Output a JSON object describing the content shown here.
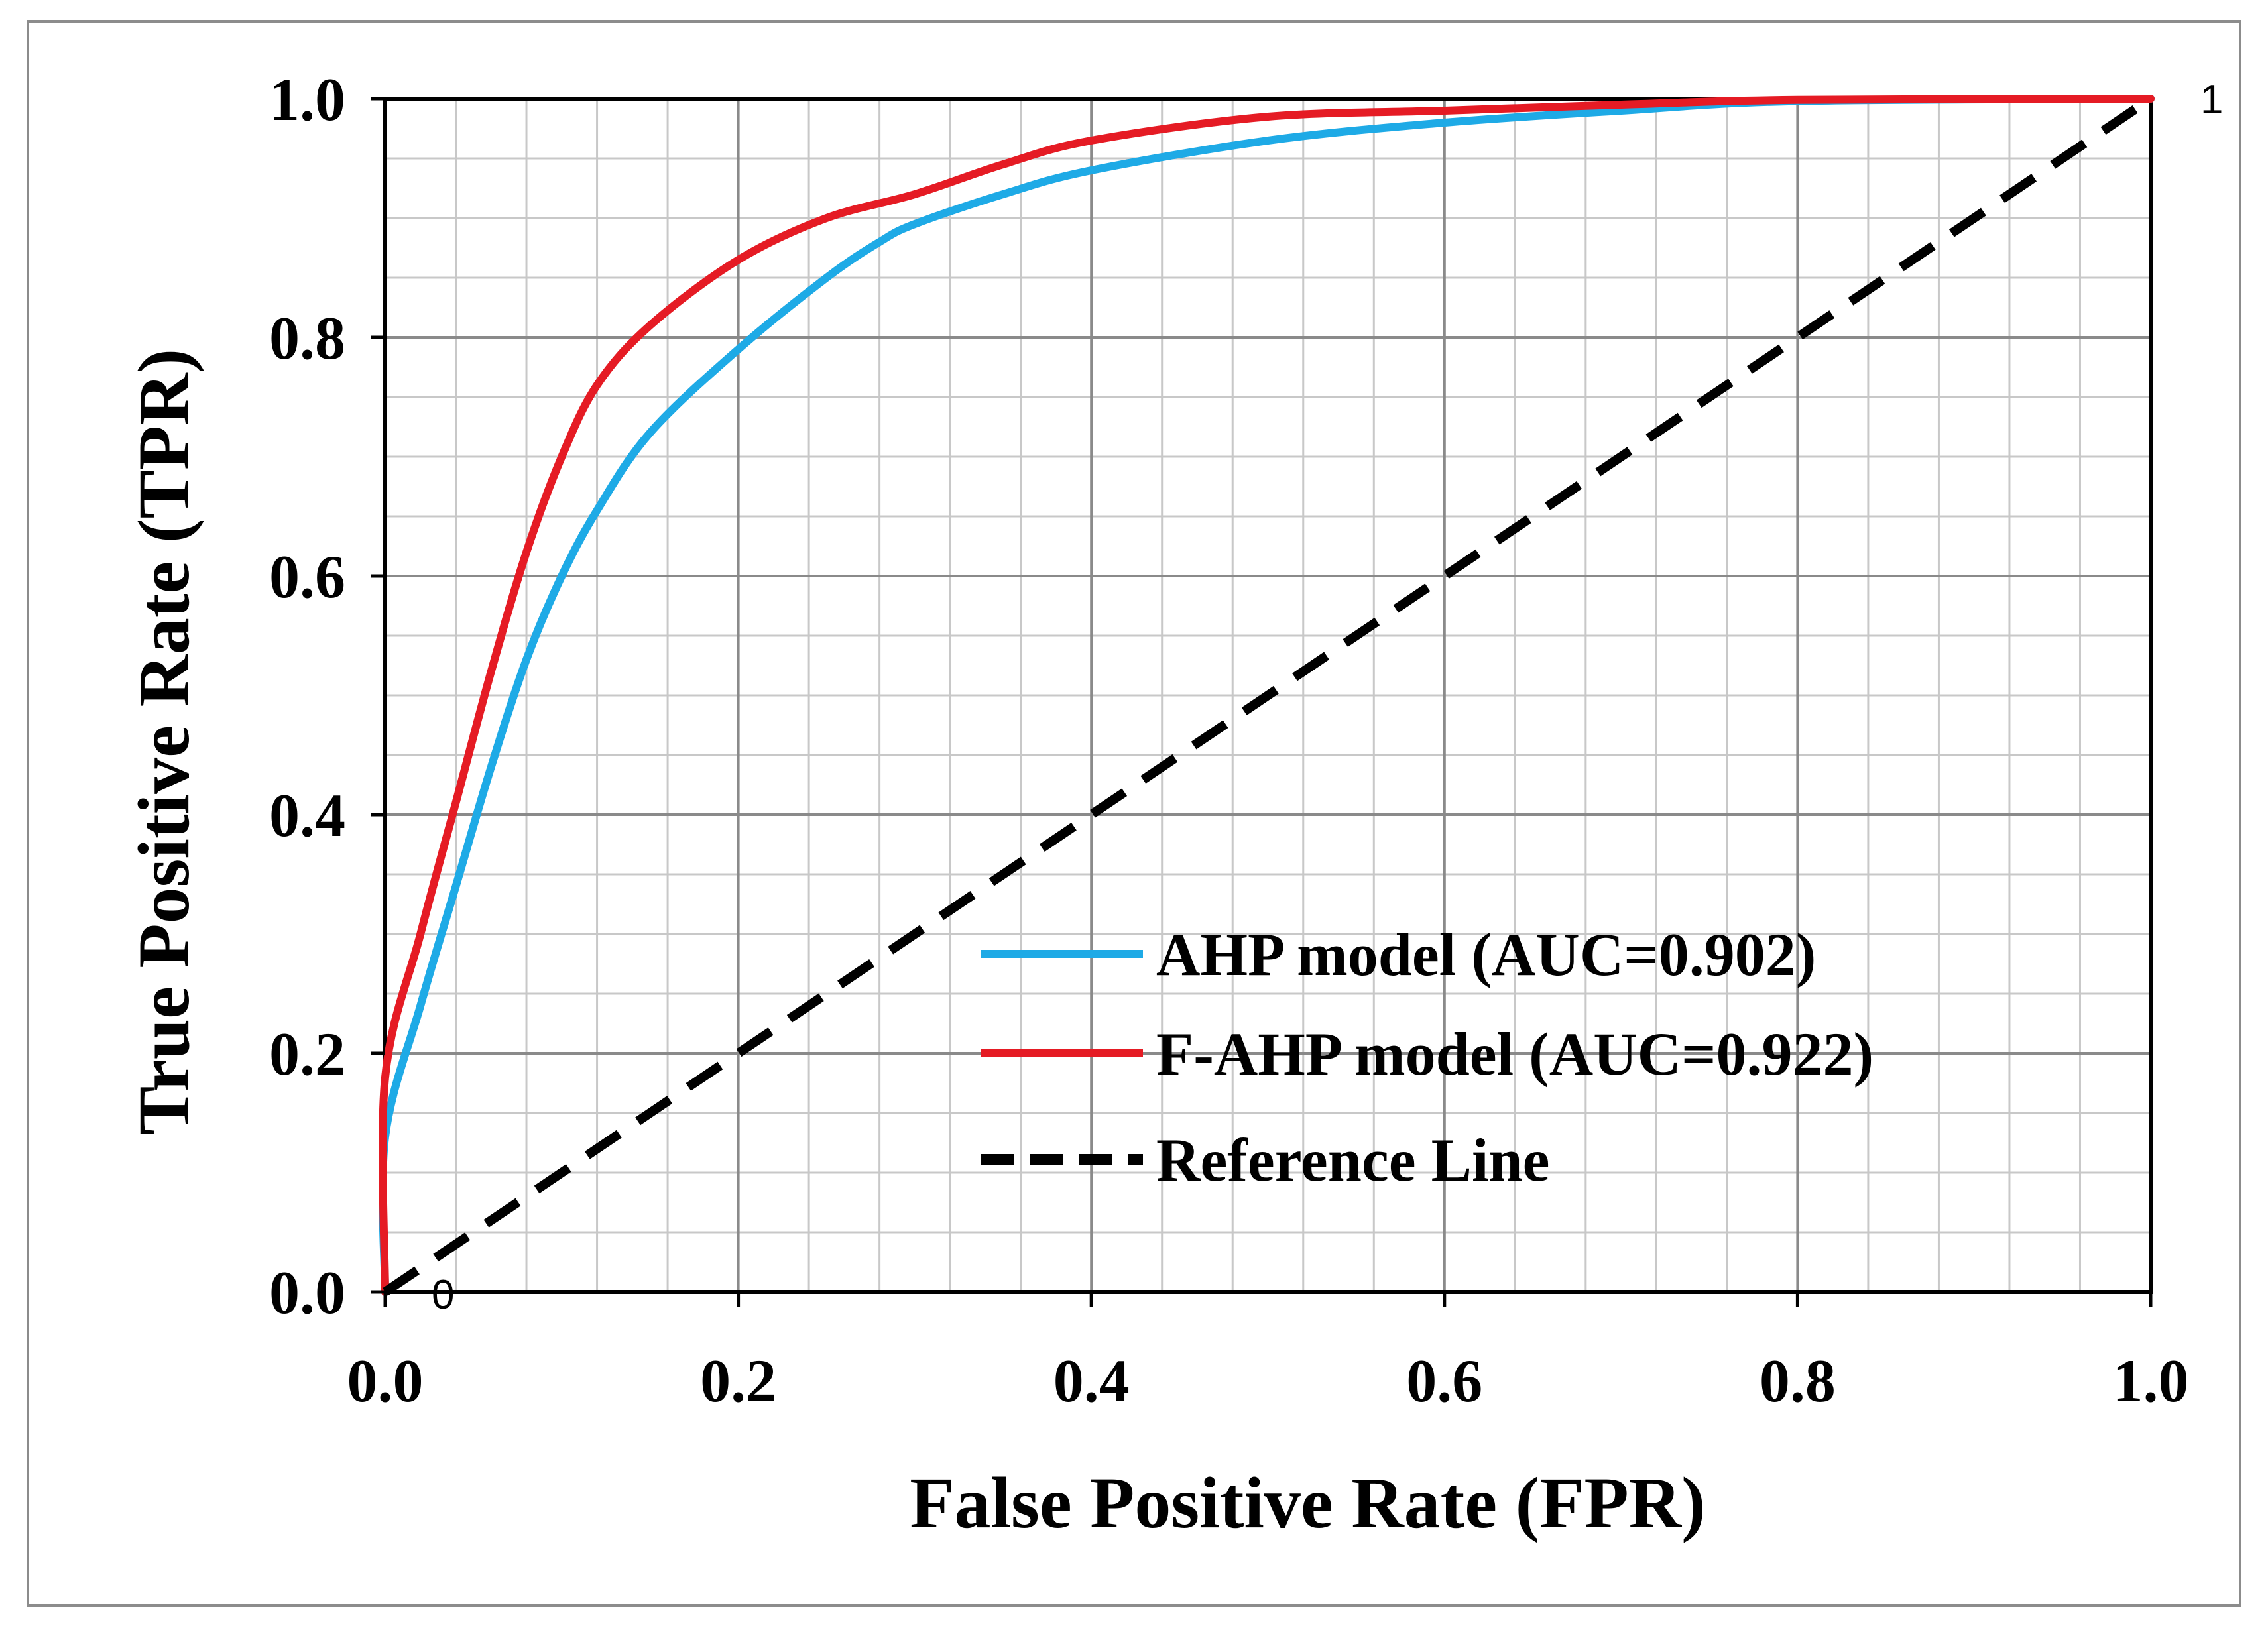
{
  "chart_data": {
    "type": "line",
    "title": "",
    "xlabel": "False Positive Rate (FPR)",
    "ylabel": "True Positive Rate (TPR)",
    "xlim": [
      0,
      1
    ],
    "ylim": [
      0,
      1
    ],
    "grid": true,
    "x_ticks": [
      0,
      0.2,
      0.4,
      0.6,
      0.8,
      1
    ],
    "x_tick_labels": [
      "0.0",
      "0.2",
      "0.4",
      "0.6",
      "0.8",
      "1.0"
    ],
    "y_ticks": [
      0,
      0.2,
      0.4,
      0.6,
      0.8,
      1
    ],
    "y_tick_labels": [
      "0.0",
      "0.2",
      "0.4",
      "0.6",
      "0.8",
      "1.0"
    ],
    "legend_position": "center-right",
    "series": [
      {
        "name": "AHP model (AUC=0.902)",
        "color": "#1eaae6",
        "style": "solid",
        "x": [
          0,
          0,
          0.02,
          0.04,
          0.06,
          0.08,
          0.1,
          0.12,
          0.15,
          0.2,
          0.25,
          0.28,
          0.3,
          0.35,
          0.4,
          0.5,
          0.6,
          0.7,
          0.8,
          1
        ],
        "y": [
          0,
          0.13,
          0.24,
          0.34,
          0.44,
          0.53,
          0.6,
          0.655,
          0.72,
          0.79,
          0.85,
          0.88,
          0.895,
          0.92,
          0.94,
          0.965,
          0.98,
          0.99,
          0.998,
          1
        ]
      },
      {
        "name": "F-AHP model (AUC=0.922)",
        "color": "#e51b24",
        "style": "solid",
        "x": [
          0,
          0,
          0.02,
          0.04,
          0.06,
          0.08,
          0.1,
          0.12,
          0.15,
          0.2,
          0.25,
          0.3,
          0.35,
          0.4,
          0.5,
          0.6,
          0.7,
          0.8,
          1
        ],
        "y": [
          0,
          0.18,
          0.3,
          0.41,
          0.52,
          0.62,
          0.7,
          0.76,
          0.81,
          0.865,
          0.9,
          0.92,
          0.945,
          0.965,
          0.985,
          0.99,
          0.995,
          0.999,
          1
        ]
      },
      {
        "name": "Reference Line",
        "color": "#000000",
        "style": "dashed",
        "x": [
          0,
          1
        ],
        "y": [
          0,
          1
        ]
      }
    ],
    "annotations": [
      {
        "text": "0",
        "x": 0,
        "y": 0
      },
      {
        "text": "1",
        "x": 1,
        "y": 1
      }
    ]
  }
}
